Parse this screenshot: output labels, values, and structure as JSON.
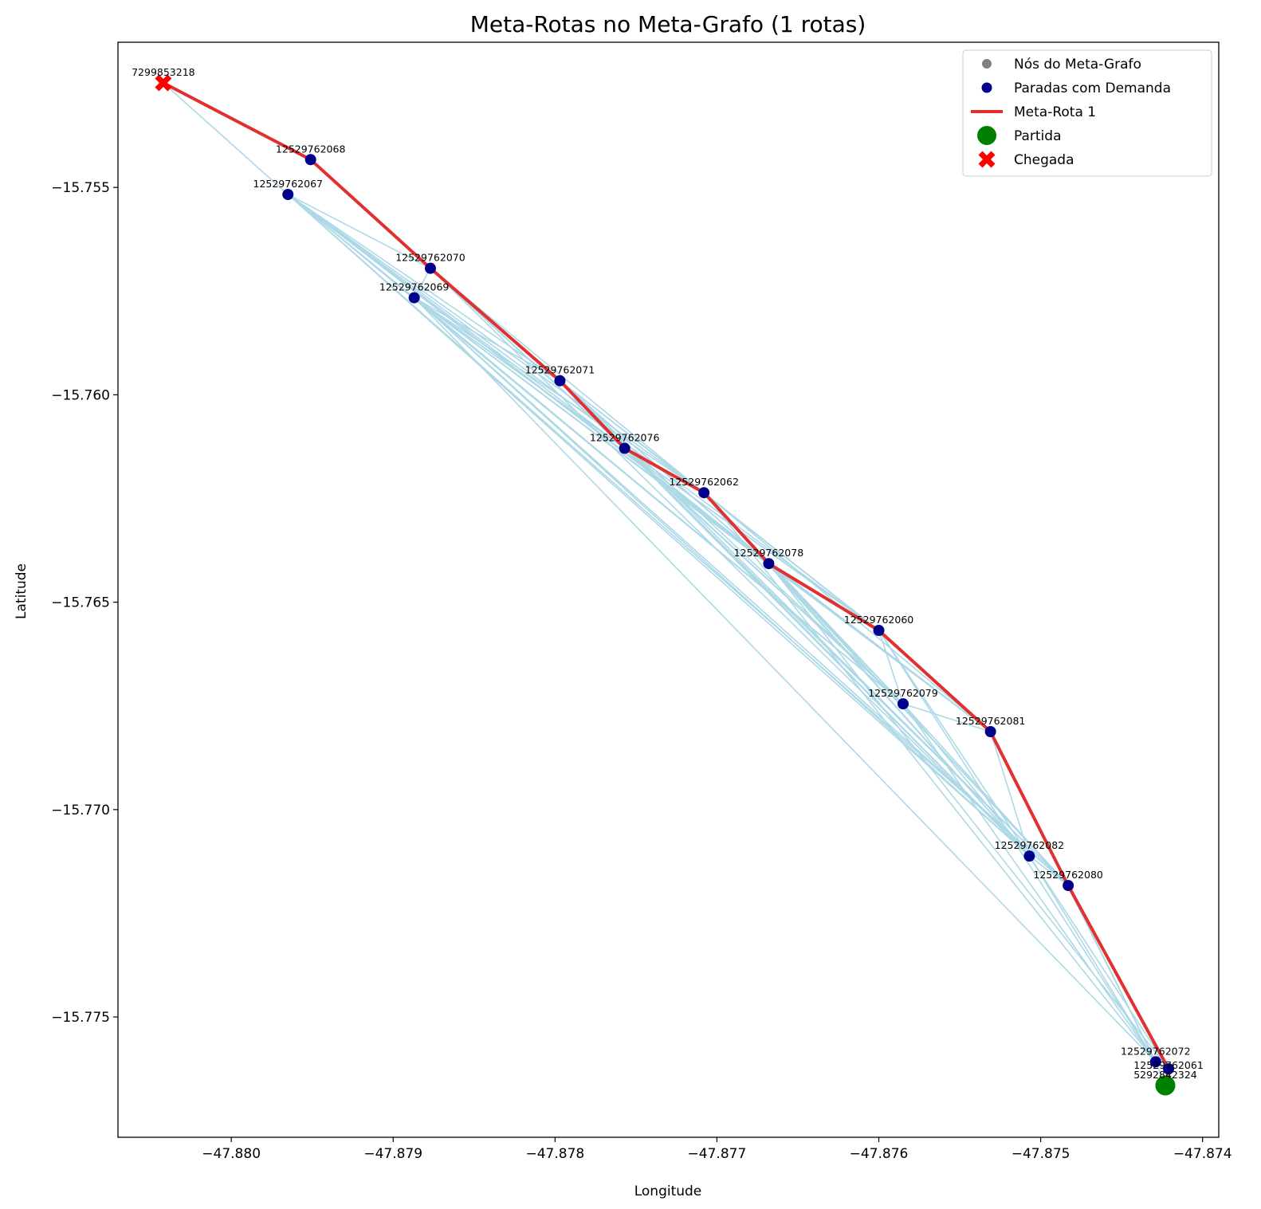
{
  "chart_data": {
    "type": "scatter",
    "title": "Meta-Rotas no Meta-Grafo (1 rotas)",
    "xlabel": "Longitude",
    "ylabel": "Latitude",
    "xlim": [
      -47.8807,
      -47.8739
    ],
    "ylim": [
      -15.7779,
      -15.7515
    ],
    "x_ticks": [
      -47.88,
      -47.879,
      -47.878,
      -47.877,
      -47.876,
      -47.875,
      -47.874
    ],
    "x_tick_labels": [
      "−47.880",
      "−47.879",
      "−47.878",
      "−47.877",
      "−47.876",
      "−47.875",
      "−47.874"
    ],
    "y_ticks": [
      -15.755,
      -15.76,
      -15.765,
      -15.77,
      -15.775
    ],
    "y_tick_labels": [
      "−15.755",
      "−15.760",
      "−15.765",
      "−15.770",
      "−15.775"
    ],
    "grid": false,
    "legend_position": "top-right",
    "legend": [
      {
        "label": "Nós do Meta-Grafo",
        "marker": "dot-small",
        "color": "#808080"
      },
      {
        "label": "Paradas com Demanda",
        "marker": "dot",
        "color": "#00008b"
      },
      {
        "label": "Meta-Rota 1",
        "marker": "line",
        "color": "#e03030"
      },
      {
        "label": "Partida",
        "marker": "big-dot",
        "color": "#008000"
      },
      {
        "label": "Chegada",
        "marker": "x",
        "color": "#ff0000"
      }
    ],
    "colors": {
      "edges": "#add8e6",
      "demand_stops": "#00008b",
      "route": "#e03030",
      "start": "#008000",
      "end": "#ff0000"
    },
    "nodes": [
      {
        "id": "7299853218",
        "x": -47.88042,
        "y": -15.75248,
        "label_dx": 0,
        "label_dy": -9
      },
      {
        "id": "12529762068",
        "x": -47.87951,
        "y": -15.75433,
        "label_dx": 0,
        "label_dy": -9
      },
      {
        "id": "12529762067",
        "x": -47.87965,
        "y": -15.75517,
        "label_dx": 0,
        "label_dy": -9
      },
      {
        "id": "12529762070",
        "x": -47.87877,
        "y": -15.75695,
        "label_dx": 0,
        "label_dy": -9
      },
      {
        "id": "12529762069",
        "x": -47.87887,
        "y": -15.75766,
        "label_dx": 0,
        "label_dy": -9
      },
      {
        "id": "12529762071",
        "x": -47.87797,
        "y": -15.75966,
        "label_dx": 0,
        "label_dy": -9
      },
      {
        "id": "12529762076",
        "x": -47.87757,
        "y": -15.76129,
        "label_dx": 0,
        "label_dy": -9
      },
      {
        "id": "12529762062",
        "x": -47.87708,
        "y": -15.76236,
        "label_dx": 0,
        "label_dy": -9
      },
      {
        "id": "12529762078",
        "x": -47.87668,
        "y": -15.76407,
        "label_dx": 0,
        "label_dy": -9
      },
      {
        "id": "12529762060",
        "x": -47.876,
        "y": -15.76568,
        "label_dx": 0,
        "label_dy": -9
      },
      {
        "id": "12529762079",
        "x": -47.87585,
        "y": -15.76745,
        "label_dx": 0,
        "label_dy": -9
      },
      {
        "id": "12529762081",
        "x": -47.87531,
        "y": -15.76812,
        "label_dx": 0,
        "label_dy": -9
      },
      {
        "id": "12529762082",
        "x": -47.87507,
        "y": -15.77112,
        "label_dx": 0,
        "label_dy": -9
      },
      {
        "id": "12529762080",
        "x": -47.87483,
        "y": -15.77183,
        "label_dx": 0,
        "label_dy": -9
      },
      {
        "id": "12529762072",
        "x": -47.87429,
        "y": -15.77608,
        "label_dx": 0,
        "label_dy": -9
      },
      {
        "id": "12529762061",
        "x": -47.87421,
        "y": -15.77625,
        "label_dx": 0,
        "label_dy": 0
      },
      {
        "id": "5292842324",
        "x": -47.87423,
        "y": -15.77665,
        "label_dx": 0,
        "label_dy": -9
      }
    ],
    "route": [
      "5292842324",
      "12529762061",
      "12529762080",
      "12529762081",
      "12529762060",
      "12529762078",
      "12529762062",
      "12529762076",
      "12529762071",
      "12529762070",
      "12529762068",
      "7299853218"
    ],
    "start": "5292842324",
    "end": "7299853218",
    "edges": [
      [
        "7299853218",
        "12529762067"
      ],
      [
        "12529762067",
        "12529762070"
      ],
      [
        "12529762067",
        "12529762069"
      ],
      [
        "12529762067",
        "12529762071"
      ],
      [
        "12529762067",
        "12529762076"
      ],
      [
        "12529762067",
        "12529762062"
      ],
      [
        "12529762067",
        "12529762078"
      ],
      [
        "12529762067",
        "12529762060"
      ],
      [
        "12529762067",
        "12529762079"
      ],
      [
        "12529762067",
        "12529762081"
      ],
      [
        "12529762067",
        "12529762082"
      ],
      [
        "12529762067",
        "12529762080"
      ],
      [
        "12529762069",
        "12529762070"
      ],
      [
        "12529762069",
        "12529762071"
      ],
      [
        "12529762069",
        "12529762076"
      ],
      [
        "12529762069",
        "12529762062"
      ],
      [
        "12529762069",
        "12529762078"
      ],
      [
        "12529762069",
        "12529762060"
      ],
      [
        "12529762069",
        "12529762079"
      ],
      [
        "12529762069",
        "12529762081"
      ],
      [
        "12529762069",
        "12529762082"
      ],
      [
        "12529762069",
        "12529762080"
      ],
      [
        "12529762069",
        "12529762072"
      ],
      [
        "12529762070",
        "12529762076"
      ],
      [
        "12529762070",
        "12529762062"
      ],
      [
        "12529762070",
        "12529762078"
      ],
      [
        "12529762070",
        "12529762079"
      ],
      [
        "12529762070",
        "12529762082"
      ],
      [
        "12529762071",
        "12529762062"
      ],
      [
        "12529762071",
        "12529762078"
      ],
      [
        "12529762071",
        "12529762060"
      ],
      [
        "12529762071",
        "12529762079"
      ],
      [
        "12529762071",
        "12529762082"
      ],
      [
        "12529762071",
        "12529762080"
      ],
      [
        "12529762076",
        "12529762078"
      ],
      [
        "12529762076",
        "12529762060"
      ],
      [
        "12529762076",
        "12529762079"
      ],
      [
        "12529762076",
        "12529762082"
      ],
      [
        "12529762076",
        "12529762080"
      ],
      [
        "12529762062",
        "12529762060"
      ],
      [
        "12529762062",
        "12529762079"
      ],
      [
        "12529762062",
        "12529762081"
      ],
      [
        "12529762062",
        "12529762082"
      ],
      [
        "12529762062",
        "12529762080"
      ],
      [
        "12529762062",
        "12529762072"
      ],
      [
        "12529762078",
        "12529762079"
      ],
      [
        "12529762078",
        "12529762081"
      ],
      [
        "12529762078",
        "12529762082"
      ],
      [
        "12529762078",
        "12529762080"
      ],
      [
        "12529762078",
        "12529762061"
      ],
      [
        "12529762060",
        "12529762079"
      ],
      [
        "12529762060",
        "12529762082"
      ],
      [
        "12529762060",
        "12529762072"
      ],
      [
        "12529762079",
        "12529762081"
      ],
      [
        "12529762079",
        "12529762082"
      ],
      [
        "12529762079",
        "12529762080"
      ],
      [
        "12529762079",
        "12529762072"
      ],
      [
        "12529762081",
        "12529762082"
      ],
      [
        "12529762081",
        "12529762072"
      ],
      [
        "12529762082",
        "12529762080"
      ],
      [
        "12529762082",
        "12529762072"
      ],
      [
        "12529762082",
        "12529762061"
      ],
      [
        "12529762080",
        "12529762072"
      ],
      [
        "12529762072",
        "12529762061"
      ],
      [
        "12529762072",
        "5292842324"
      ]
    ]
  }
}
